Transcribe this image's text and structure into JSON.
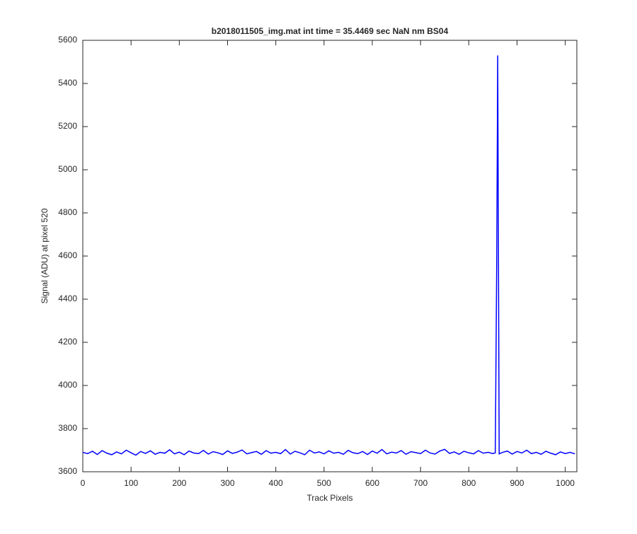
{
  "chart_data": {
    "type": "line",
    "title": "b2018011505_img.mat int time = 35.4469 sec  NaN nm BS04",
    "x_label": "Track Pixels",
    "y_label": "Signal (ADU) at pixel 520",
    "x": [
      0,
      10,
      20,
      30,
      40,
      50,
      60,
      70,
      80,
      90,
      100,
      110,
      120,
      130,
      140,
      150,
      160,
      170,
      180,
      190,
      200,
      210,
      220,
      230,
      240,
      250,
      260,
      270,
      280,
      290,
      300,
      310,
      320,
      330,
      340,
      350,
      360,
      370,
      380,
      390,
      400,
      410,
      420,
      430,
      440,
      450,
      460,
      470,
      480,
      490,
      500,
      510,
      520,
      530,
      540,
      550,
      560,
      570,
      580,
      590,
      600,
      610,
      620,
      630,
      640,
      650,
      660,
      670,
      680,
      690,
      700,
      710,
      720,
      730,
      740,
      750,
      760,
      770,
      780,
      790,
      800,
      810,
      820,
      830,
      840,
      850,
      855,
      858,
      860,
      863,
      870,
      880,
      890,
      900,
      910,
      920,
      930,
      940,
      950,
      960,
      970,
      980,
      990,
      1000,
      1010,
      1020
    ],
    "series": [
      {
        "name": "Signal",
        "color": "#0000ff",
        "values": [
          3690,
          3684,
          3695,
          3680,
          3698,
          3686,
          3679,
          3692,
          3683,
          3700,
          3688,
          3677,
          3694,
          3685,
          3697,
          3681,
          3690,
          3686,
          3702,
          3683,
          3691,
          3679,
          3696,
          3687,
          3684,
          3699,
          3682,
          3693,
          3688,
          3680,
          3697,
          3685,
          3691,
          3701,
          3683,
          3689,
          3694,
          3681,
          3698,
          3686,
          3690,
          3684,
          3703,
          3682,
          3695,
          3688,
          3679,
          3700,
          3687,
          3692,
          3683,
          3697,
          3686,
          3690,
          3681,
          3699,
          3688,
          3684,
          3694,
          3680,
          3696,
          3686,
          3703,
          3683,
          3691,
          3687,
          3698,
          3681,
          3693,
          3689,
          3684,
          3700,
          3687,
          3682,
          3696,
          3704,
          3685,
          3692,
          3681,
          3695,
          3688,
          3683,
          3698,
          3686,
          3690,
          3684,
          3688,
          4600,
          5530,
          3683,
          3690,
          3696,
          3682,
          3694,
          3687,
          3700,
          3684,
          3690,
          3681,
          3695,
          3686,
          3679,
          3692,
          3684,
          3690,
          3683
        ]
      }
    ],
    "xlim": [
      0,
      1024
    ],
    "xticks": [
      0,
      100,
      200,
      300,
      400,
      500,
      600,
      700,
      800,
      900,
      1000
    ],
    "ylim": [
      3600,
      5600
    ],
    "yticks": [
      3600,
      3800,
      4000,
      4200,
      4400,
      4600,
      4800,
      5000,
      5200,
      5400,
      5600
    ],
    "grid": false
  }
}
